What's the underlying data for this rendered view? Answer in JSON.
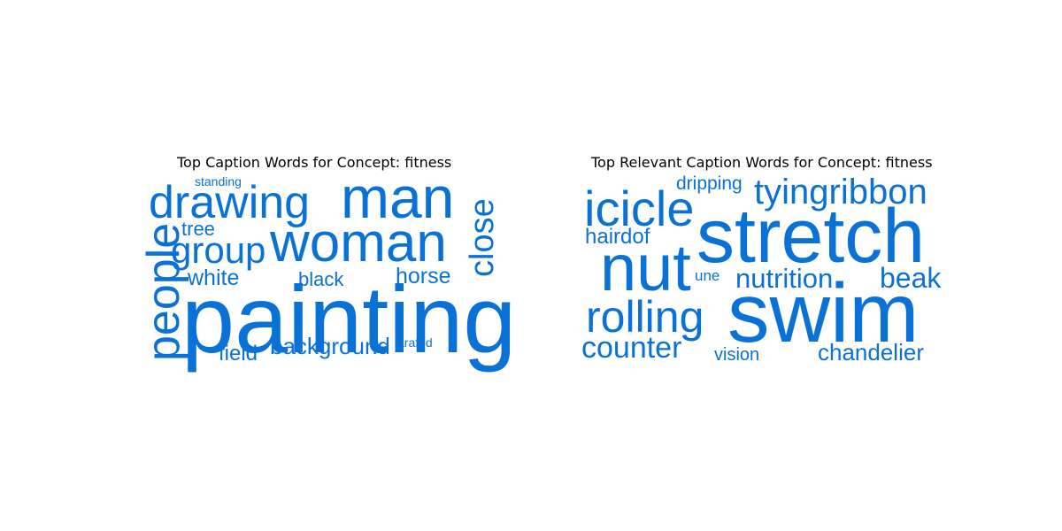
{
  "chart_data": [
    {
      "type": "wordcloud",
      "title": "Top Caption Words for Concept: fitness",
      "color": "#0a72d7",
      "words": [
        "painting",
        "woman",
        "man",
        "drawing",
        "people",
        "group",
        "close",
        "background",
        "horse",
        "white",
        "black",
        "field",
        "tree",
        "arafed",
        "standing"
      ]
    },
    {
      "type": "wordcloud",
      "title": "Top Relevant Caption Words for Concept: fitness",
      "color": "#0a72d7",
      "words": [
        "swim",
        "stretch",
        "nut",
        "icicle",
        "rolling",
        "tyingribbon",
        "nutrition",
        "counter",
        "beak",
        "chandelier",
        "hairdof",
        "dripping",
        "vision",
        "une"
      ]
    }
  ]
}
